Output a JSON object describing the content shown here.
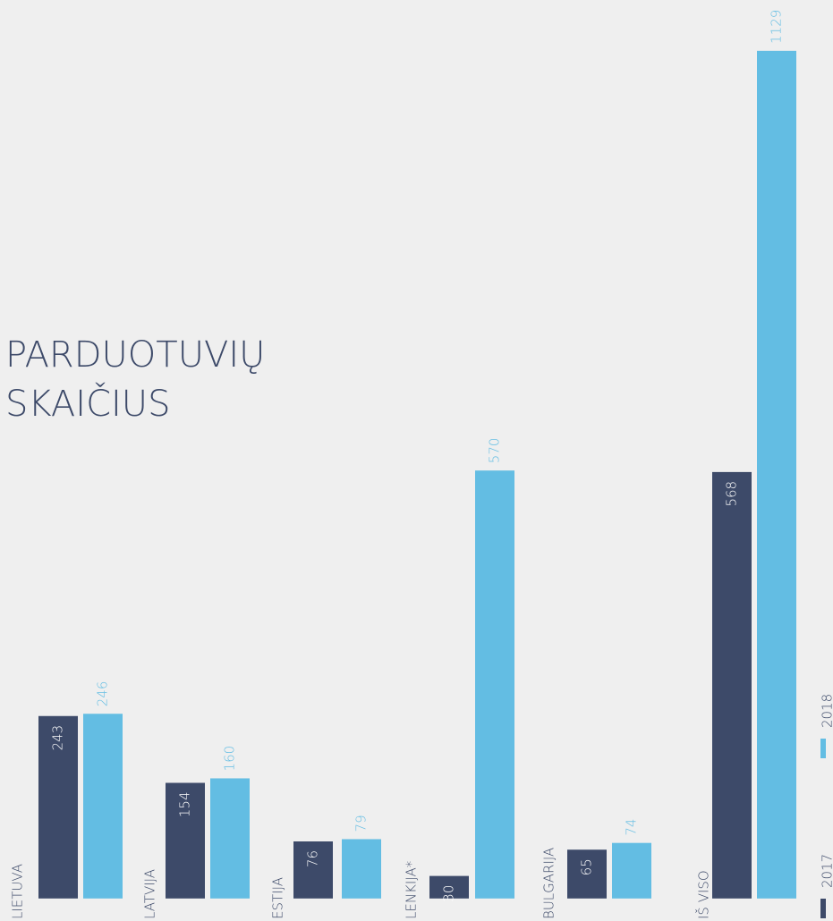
{
  "chart_data": {
    "type": "bar",
    "title_lines": [
      "PARDUOTUVIŲ",
      "SKAIČIUS"
    ],
    "categories": [
      "LIETUVA",
      "LATVIJA",
      "ESTIJA",
      "LENKIJA*",
      "BULGARIJA",
      "IŠ VISO"
    ],
    "series": [
      {
        "name": "2017",
        "color": "#3d4a69",
        "values": [
          243,
          154,
          76,
          30,
          65,
          568
        ]
      },
      {
        "name": "2018",
        "color": "#63bde3",
        "values": [
          246,
          160,
          79,
          570,
          74,
          1129
        ]
      }
    ],
    "ylim": [
      -30,
      1130
    ]
  }
}
